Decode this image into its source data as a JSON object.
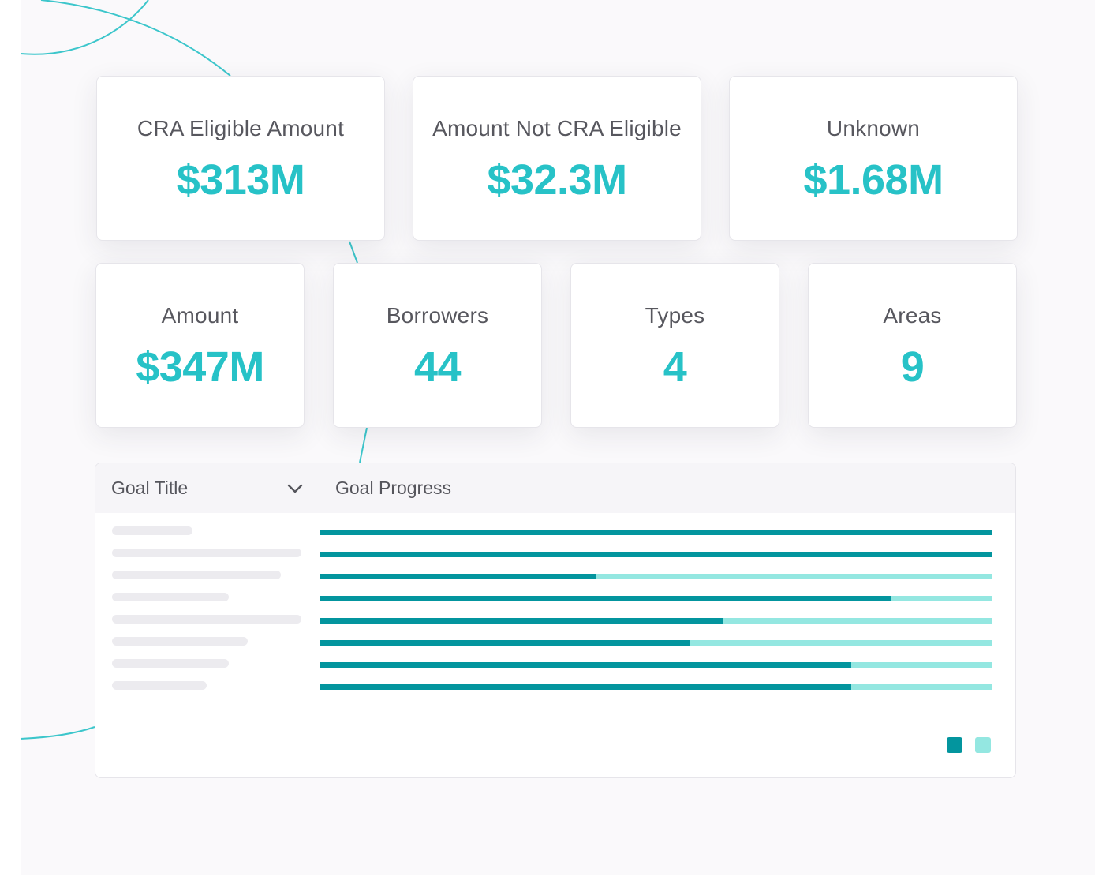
{
  "stats_top": [
    {
      "label": "CRA Eligible Amount",
      "value": "$313M"
    },
    {
      "label": "Amount Not CRA Eligible",
      "value": "$32.3M"
    },
    {
      "label": "Unknown",
      "value": "$1.68M"
    }
  ],
  "stats_bottom": [
    {
      "label": "Amount",
      "value": "$347M"
    },
    {
      "label": "Borrowers",
      "value": "44"
    },
    {
      "label": "Types",
      "value": "4"
    },
    {
      "label": "Areas",
      "value": "9"
    }
  ],
  "goals_table": {
    "col_title": "Goal Title",
    "col_progress": "Goal Progress",
    "sort_icon": "chevron-down-icon",
    "rows": [
      {
        "progress": 1.0
      },
      {
        "progress": 1.0
      },
      {
        "progress": 0.41
      },
      {
        "progress": 0.85
      },
      {
        "progress": 0.6
      },
      {
        "progress": 0.55
      },
      {
        "progress": 0.79
      },
      {
        "progress": 0.79
      }
    ],
    "legend": {
      "achieved_color": "#03959e",
      "remaining_color": "#94e7e1"
    }
  },
  "colors": {
    "accent": "#27c2c7",
    "bar_dark": "#03959e",
    "bar_light": "#94e7e1"
  }
}
